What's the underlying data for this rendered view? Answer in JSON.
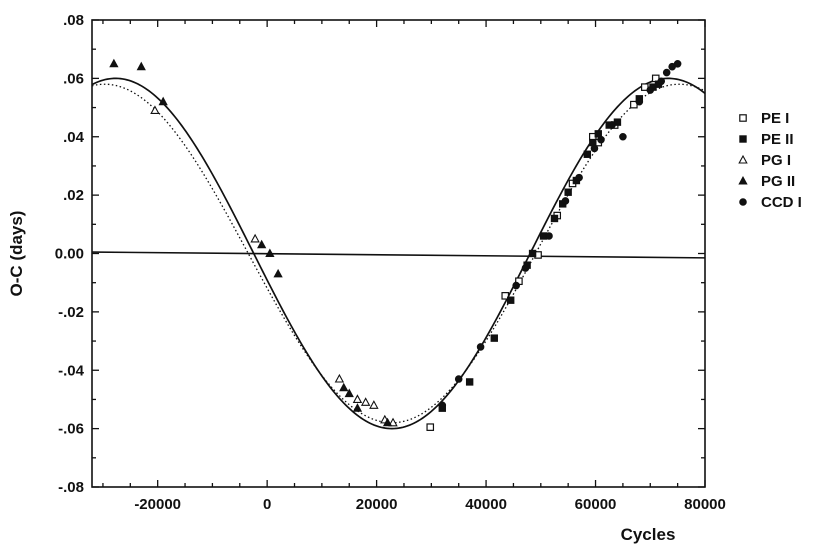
{
  "chart_data": {
    "type": "scatter",
    "xlabel": "Cycles",
    "ylabel": "O-C (days)",
    "xlim": [
      -32000,
      80000
    ],
    "ylim": [
      -0.08,
      0.08
    ],
    "x_ticks": [
      -20000,
      0,
      20000,
      40000,
      60000,
      80000
    ],
    "x_tick_labels": [
      "-20000",
      "0",
      "20000",
      "40000",
      "60000",
      "80000"
    ],
    "y_ticks": [
      0.08,
      0.06,
      0.04,
      0.02,
      0.0,
      -0.02,
      -0.04,
      -0.06,
      -0.08
    ],
    "y_tick_labels": [
      ".08",
      ".06",
      ".04",
      ".02",
      "0.00",
      "-.02",
      "-.04",
      "-.06",
      "-.08"
    ],
    "grid": false,
    "legend_position": "right",
    "legend": [
      {
        "name": "PE I",
        "marker": "open-square"
      },
      {
        "name": "PE II",
        "marker": "filled-square"
      },
      {
        "name": "PG I",
        "marker": "open-triangle"
      },
      {
        "name": "PG II",
        "marker": "filled-triangle"
      },
      {
        "name": "CCD I",
        "marker": "filled-circle"
      }
    ],
    "series": [
      {
        "name": "PE I",
        "marker": "open-square",
        "x": [
          29800,
          43500,
          46000,
          49500,
          53000,
          55800,
          59500,
          60500,
          63500,
          67000,
          69000,
          71000
        ],
        "y": [
          -0.0595,
          -0.0145,
          -0.0095,
          -0.0005,
          0.013,
          0.024,
          0.04,
          0.038,
          0.044,
          0.051,
          0.057,
          0.06
        ]
      },
      {
        "name": "PE II",
        "marker": "filled-square",
        "x": [
          32000,
          37000,
          41500,
          44500,
          47500,
          48500,
          50500,
          52500,
          54000,
          55000,
          56500,
          58500,
          59500,
          60500,
          62500,
          64000,
          68000,
          70500,
          71500
        ],
        "y": [
          -0.053,
          -0.044,
          -0.029,
          -0.016,
          -0.004,
          0.0,
          0.006,
          0.012,
          0.017,
          0.021,
          0.025,
          0.034,
          0.038,
          0.041,
          0.044,
          0.045,
          0.053,
          0.057,
          0.058
        ]
      },
      {
        "name": "PG I",
        "marker": "open-triangle",
        "x": [
          -20500,
          -2200,
          13200,
          16500,
          18000,
          19500,
          21500,
          23000
        ],
        "y": [
          0.049,
          0.005,
          -0.043,
          -0.05,
          -0.051,
          -0.052,
          -0.057,
          -0.058
        ]
      },
      {
        "name": "PG II",
        "marker": "filled-triangle",
        "x": [
          -28000,
          -23000,
          -19000,
          -1000,
          500,
          2000,
          14000,
          15000,
          16500,
          22000
        ],
        "y": [
          0.065,
          0.064,
          0.052,
          0.003,
          0.0,
          -0.007,
          -0.046,
          -0.048,
          -0.053,
          -0.058
        ]
      },
      {
        "name": "CCD I",
        "marker": "filled-circle",
        "x": [
          32000,
          35000,
          39000,
          45500,
          47200,
          51500,
          54500,
          57000,
          59800,
          61000,
          63000,
          65000,
          68000,
          70000,
          72000,
          73000,
          74000,
          75000
        ],
        "y": [
          -0.052,
          -0.043,
          -0.032,
          -0.011,
          -0.005,
          0.006,
          0.018,
          0.026,
          0.036,
          0.039,
          0.044,
          0.04,
          0.052,
          0.056,
          0.059,
          0.062,
          0.064,
          0.065
        ]
      }
    ],
    "fit_curves": [
      {
        "style": "solid",
        "amplitude": 0.06,
        "center": 22800,
        "period": 101000
      },
      {
        "style": "dotted",
        "amplitude": 0.058,
        "center": 22800,
        "period": 105000
      }
    ],
    "zero_line": true
  }
}
